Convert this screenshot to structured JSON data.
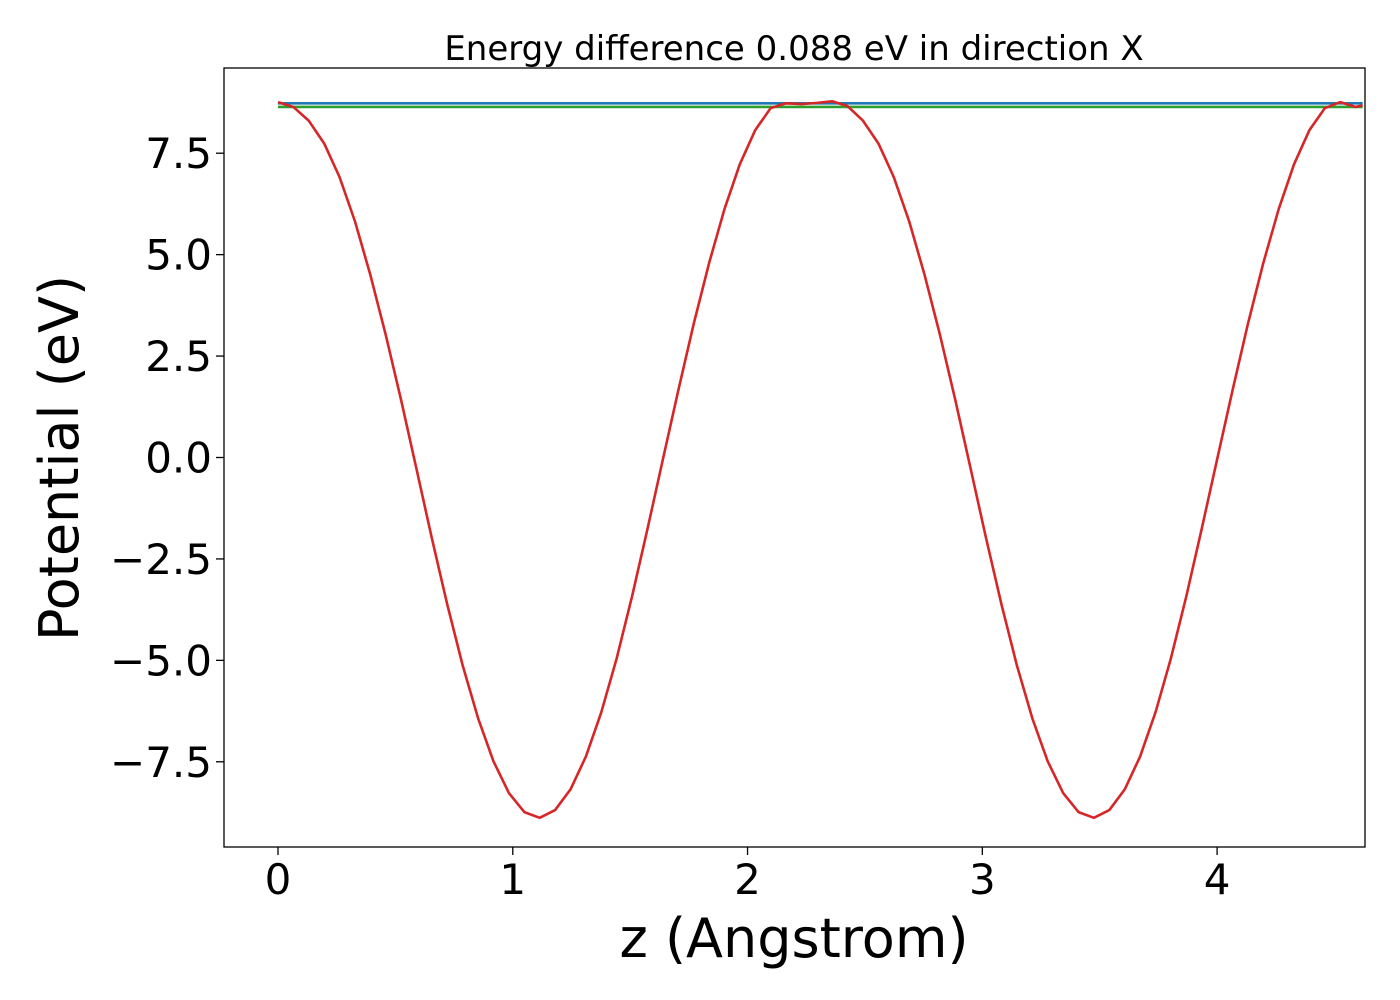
{
  "chart_data": {
    "type": "line",
    "title": "Energy difference 0.088 eV in direction X",
    "xlabel": "z (Angstrom)",
    "ylabel": "Potential (eV)",
    "xlim": [
      -0.23,
      4.63
    ],
    "ylim": [
      -9.6,
      9.6
    ],
    "x_ticks": [
      0,
      1,
      2,
      3,
      4
    ],
    "x_tick_labels": [
      "0",
      "1",
      "2",
      "3",
      "4"
    ],
    "y_ticks": [
      7.5,
      5.0,
      2.5,
      0.0,
      -2.5,
      -5.0,
      -7.5
    ],
    "y_tick_labels": [
      "7.5",
      "5.0",
      "2.5",
      "0.0",
      "−2.5",
      "−5.0",
      "−7.5"
    ],
    "grid": false,
    "series": [
      {
        "color": "#1f77b4",
        "x": [
          0,
          4.62
        ],
        "values": [
          8.73,
          8.73
        ]
      },
      {
        "color": "#2ca02c",
        "x": [
          0,
          4.62
        ],
        "values": [
          8.64,
          8.64
        ]
      },
      {
        "color": "#d62728",
        "x": [
          0.0,
          0.0656,
          0.1311,
          0.1967,
          0.2623,
          0.3279,
          0.3934,
          0.459,
          0.5246,
          0.5902,
          0.6557,
          0.7213,
          0.7869,
          0.8525,
          0.918,
          0.9836,
          1.0492,
          1.1148,
          1.1803,
          1.2459,
          1.3115,
          1.377,
          1.4426,
          1.5082,
          1.5738,
          1.6393,
          1.7049,
          1.7705,
          1.8361,
          1.9016,
          1.9672,
          2.0328,
          2.0984,
          2.1639,
          2.2295,
          2.2951,
          2.3607,
          2.4262,
          2.4918,
          2.5574,
          2.623,
          2.6885,
          2.7541,
          2.8197,
          2.8852,
          2.9508,
          3.0164,
          3.082,
          3.1475,
          3.2131,
          3.2787,
          3.3443,
          3.4098,
          3.4754,
          3.541,
          3.6066,
          3.6721,
          3.7377,
          3.8033,
          3.8689,
          3.9344,
          4.0,
          4.0656,
          4.1311,
          4.1967,
          4.2623,
          4.3279,
          4.3934,
          4.459,
          4.5246,
          4.5902,
          4.62
        ],
        "values": [
          8.76,
          8.64,
          8.3,
          7.74,
          6.91,
          5.82,
          4.5,
          3.02,
          1.41,
          -0.29,
          -2.0,
          -3.63,
          -5.13,
          -6.43,
          -7.49,
          -8.27,
          -8.74,
          -8.88,
          -8.69,
          -8.18,
          -7.37,
          -6.28,
          -4.95,
          -3.42,
          -1.76,
          -0.05,
          1.65,
          3.29,
          4.79,
          6.12,
          7.23,
          8.07,
          8.61,
          8.73,
          8.71,
          8.74,
          8.78,
          8.66,
          8.3,
          7.74,
          6.91,
          5.82,
          4.5,
          3.02,
          1.41,
          -0.29,
          -2.0,
          -3.63,
          -5.13,
          -6.43,
          -7.49,
          -8.27,
          -8.74,
          -8.88,
          -8.69,
          -8.18,
          -7.37,
          -6.28,
          -4.95,
          -3.42,
          -1.76,
          -0.05,
          1.65,
          3.29,
          4.79,
          6.12,
          7.23,
          8.07,
          8.61,
          8.76,
          8.64,
          8.68
        ]
      }
    ]
  }
}
